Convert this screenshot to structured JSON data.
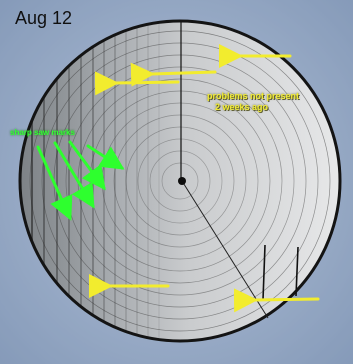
{
  "photo": {
    "date_label": "Aug 12",
    "annotations": {
      "problems": {
        "line1": "problems not present",
        "line2": "2 weeks ago",
        "color": "#f0ea34"
      },
      "green_note": {
        "text": "sharp saw marks",
        "color": "#33ff33"
      }
    },
    "colors": {
      "background": "#8fa3bf",
      "disc_rim": "#141414",
      "arrow_yellow": "#f2ec2e",
      "arrow_green": "#2eff2e"
    }
  }
}
